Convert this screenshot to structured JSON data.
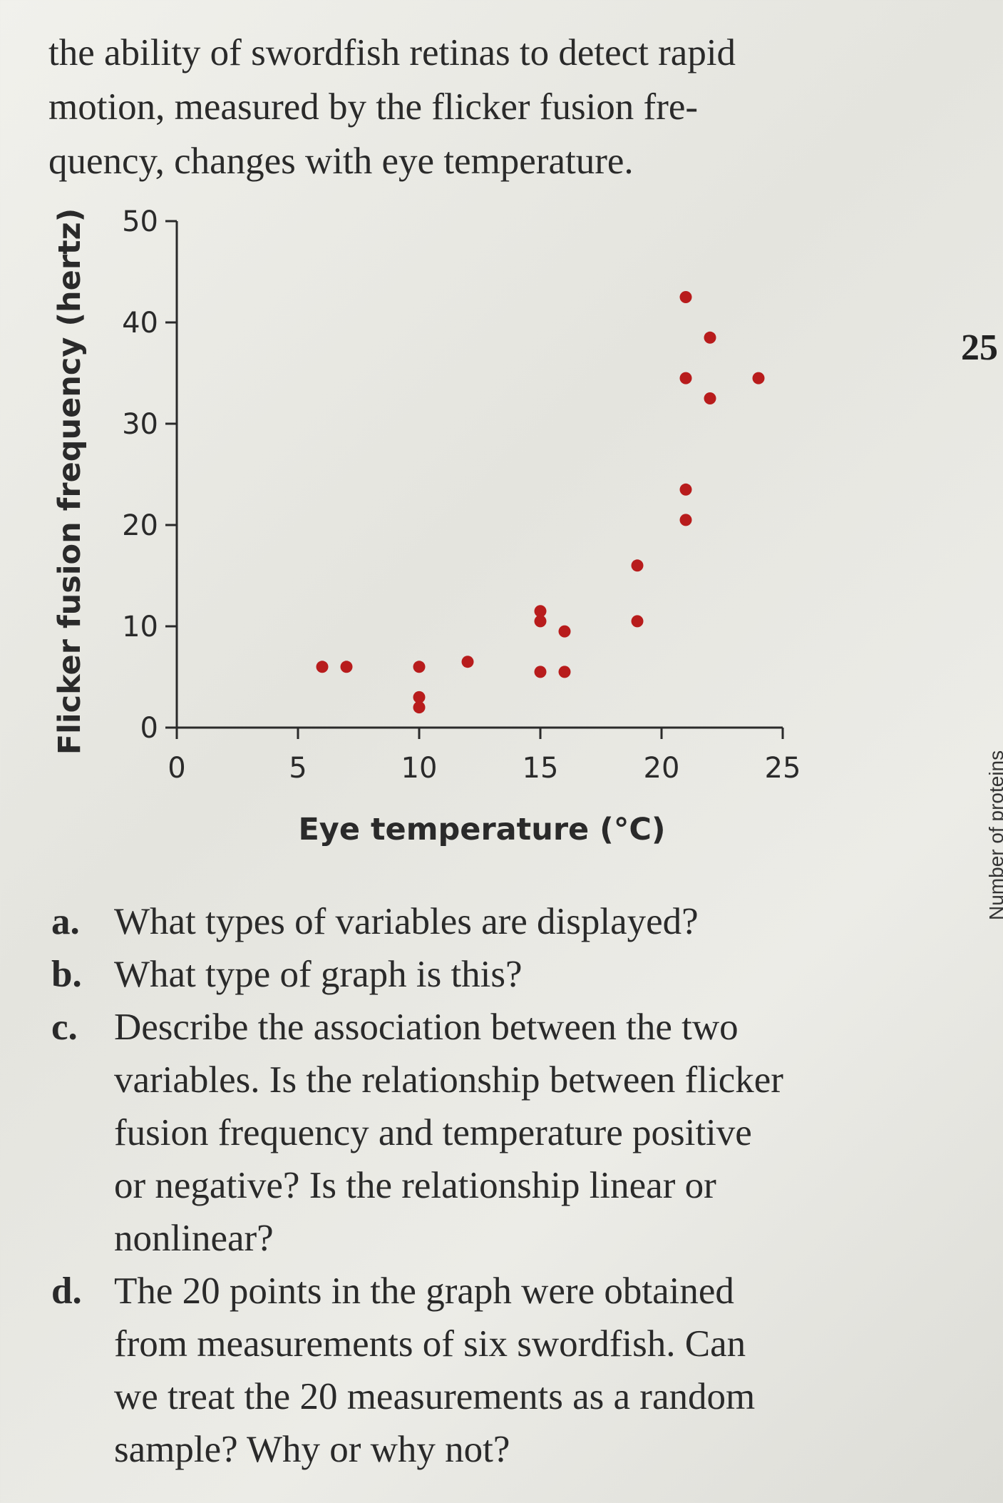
{
  "intro_lines": [
    "the ability of swordfish retinas to detect rapid",
    "motion, measured by the flicker fusion fre-",
    "quency, changes with eye temperature."
  ],
  "colors": {
    "point": "#b81c1c",
    "axis": "#2a2a2a",
    "text": "#2a2a2a"
  },
  "chart_data": {
    "type": "scatter",
    "xlabel": "Eye temperature (°C)",
    "ylabel": "Flicker fusion frequency (hertz)",
    "xlim": [
      0,
      25
    ],
    "ylim": [
      0,
      50
    ],
    "xticks": [
      0,
      5,
      10,
      15,
      20,
      25
    ],
    "yticks": [
      0,
      10,
      20,
      30,
      40,
      50
    ],
    "grid": false,
    "legend": "none",
    "points": [
      {
        "x": 6.0,
        "y": 6.0
      },
      {
        "x": 7.0,
        "y": 6.0
      },
      {
        "x": 10.0,
        "y": 6.0
      },
      {
        "x": 10.0,
        "y": 3.0
      },
      {
        "x": 10.0,
        "y": 2.0
      },
      {
        "x": 12.0,
        "y": 6.5
      },
      {
        "x": 15.0,
        "y": 11.5
      },
      {
        "x": 15.0,
        "y": 10.5
      },
      {
        "x": 16.0,
        "y": 9.5
      },
      {
        "x": 15.0,
        "y": 5.5
      },
      {
        "x": 16.0,
        "y": 5.5
      },
      {
        "x": 19.0,
        "y": 16.0
      },
      {
        "x": 19.0,
        "y": 10.5
      },
      {
        "x": 21.0,
        "y": 42.5
      },
      {
        "x": 22.0,
        "y": 38.5
      },
      {
        "x": 21.0,
        "y": 34.5
      },
      {
        "x": 22.0,
        "y": 32.5
      },
      {
        "x": 24.0,
        "y": 34.5
      },
      {
        "x": 21.0,
        "y": 23.5
      },
      {
        "x": 21.0,
        "y": 20.5
      }
    ]
  },
  "margin": {
    "number": "25",
    "rotated_text": "Number of proteins"
  },
  "questions": [
    {
      "letter": "a.",
      "lines": [
        "What types of variables are displayed?"
      ]
    },
    {
      "letter": "b.",
      "lines": [
        "What type of graph is this?"
      ]
    },
    {
      "letter": "c.",
      "lines": [
        "Describe the association between the two",
        "variables. Is the relationship between flicker",
        "fusion frequency and temperature positive",
        "or negative? Is the relationship linear or",
        "nonlinear?"
      ]
    },
    {
      "letter": "d.",
      "lines": [
        "The 20 points in the graph were obtained",
        "from measurements of six swordfish. Can",
        "we treat the 20 measurements as a random",
        "sample? Why or why not?"
      ]
    }
  ]
}
